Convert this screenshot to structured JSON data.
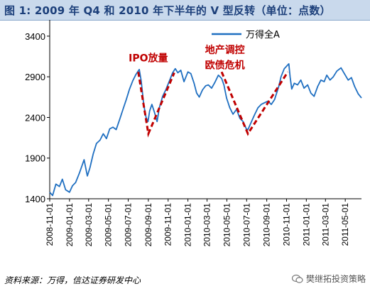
{
  "header": {
    "title": "图 1:  2009 年 Q4 和 2010 年下半年的 V 型反转（单位：点数）"
  },
  "footer": {
    "source": "资料来源：万得，信达证券研发中心",
    "watermark": "樊继拓投资策略"
  },
  "colors": {
    "line": "#1f6fc1",
    "annotation": "#c00000",
    "axis": "#000000",
    "title_bg": "#c9d9ec",
    "title_text": "#1c3f7a"
  },
  "chart_data": {
    "type": "line",
    "title": "",
    "xlabel": "",
    "ylabel": "",
    "ylim": [
      1400,
      3600
    ],
    "yticks": [
      1400,
      1900,
      2400,
      2900,
      3400
    ],
    "xlim": [
      "2008-11-01",
      "2011-06-20"
    ],
    "xticks": [
      "2008-11-01",
      "2009-01-01",
      "2009-03-01",
      "2009-05-01",
      "2009-07-01",
      "2009-09-01",
      "2009-11-01",
      "2010-01-01",
      "2010-03-01",
      "2010-05-01",
      "2010-07-01",
      "2010-09-01",
      "2010-11-01",
      "2011-01-01",
      "2011-03-01",
      "2011-05-01"
    ],
    "legend": {
      "position": "top-center"
    },
    "grid": false,
    "series": [
      {
        "name": "万得全A",
        "points": [
          [
            "2008-11-01",
            1480
          ],
          [
            "2008-11-10",
            1440
          ],
          [
            "2008-11-20",
            1580
          ],
          [
            "2008-12-01",
            1550
          ],
          [
            "2008-12-10",
            1640
          ],
          [
            "2008-12-20",
            1510
          ],
          [
            "2009-01-01",
            1480
          ],
          [
            "2009-01-10",
            1560
          ],
          [
            "2009-01-20",
            1600
          ],
          [
            "2009-02-01",
            1720
          ],
          [
            "2009-02-15",
            1880
          ],
          [
            "2009-02-25",
            1680
          ],
          [
            "2009-03-05",
            1780
          ],
          [
            "2009-03-15",
            1950
          ],
          [
            "2009-03-25",
            2080
          ],
          [
            "2009-04-05",
            2120
          ],
          [
            "2009-04-15",
            2200
          ],
          [
            "2009-04-25",
            2140
          ],
          [
            "2009-05-05",
            2260
          ],
          [
            "2009-05-15",
            2280
          ],
          [
            "2009-05-25",
            2250
          ],
          [
            "2009-06-05",
            2380
          ],
          [
            "2009-06-15",
            2500
          ],
          [
            "2009-06-25",
            2620
          ],
          [
            "2009-07-05",
            2750
          ],
          [
            "2009-07-15",
            2850
          ],
          [
            "2009-07-25",
            2930
          ],
          [
            "2009-08-04",
            2990
          ],
          [
            "2009-08-10",
            2850
          ],
          [
            "2009-08-18",
            2550
          ],
          [
            "2009-08-25",
            2400
          ],
          [
            "2009-08-31",
            2350
          ],
          [
            "2009-09-05",
            2480
          ],
          [
            "2009-09-12",
            2560
          ],
          [
            "2009-09-20",
            2460
          ],
          [
            "2009-09-28",
            2350
          ],
          [
            "2009-10-05",
            2520
          ],
          [
            "2009-10-15",
            2660
          ],
          [
            "2009-10-25",
            2740
          ],
          [
            "2009-11-05",
            2850
          ],
          [
            "2009-11-15",
            2950
          ],
          [
            "2009-11-23",
            3000
          ],
          [
            "2009-12-01",
            2950
          ],
          [
            "2009-12-10",
            2980
          ],
          [
            "2009-12-20",
            2840
          ],
          [
            "2010-01-01",
            2960
          ],
          [
            "2010-01-10",
            2940
          ],
          [
            "2010-01-20",
            2820
          ],
          [
            "2010-01-28",
            2700
          ],
          [
            "2010-02-05",
            2650
          ],
          [
            "2010-02-15",
            2740
          ],
          [
            "2010-02-25",
            2790
          ],
          [
            "2010-03-05",
            2800
          ],
          [
            "2010-03-15",
            2760
          ],
          [
            "2010-03-25",
            2830
          ],
          [
            "2010-04-05",
            2920
          ],
          [
            "2010-04-15",
            2880
          ],
          [
            "2010-04-22",
            2800
          ],
          [
            "2010-04-30",
            2640
          ],
          [
            "2010-05-10",
            2520
          ],
          [
            "2010-05-20",
            2440
          ],
          [
            "2010-05-31",
            2500
          ],
          [
            "2010-06-10",
            2390
          ],
          [
            "2010-06-20",
            2350
          ],
          [
            "2010-06-30",
            2260
          ],
          [
            "2010-07-05",
            2250
          ],
          [
            "2010-07-15",
            2340
          ],
          [
            "2010-07-25",
            2430
          ],
          [
            "2010-08-05",
            2520
          ],
          [
            "2010-08-15",
            2560
          ],
          [
            "2010-08-25",
            2580
          ],
          [
            "2010-09-05",
            2600
          ],
          [
            "2010-09-15",
            2560
          ],
          [
            "2010-09-25",
            2620
          ],
          [
            "2010-10-08",
            2780
          ],
          [
            "2010-10-15",
            2900
          ],
          [
            "2010-10-25",
            3000
          ],
          [
            "2010-11-08",
            3060
          ],
          [
            "2010-11-12",
            2900
          ],
          [
            "2010-11-17",
            2750
          ],
          [
            "2010-11-25",
            2820
          ],
          [
            "2010-12-05",
            2800
          ],
          [
            "2010-12-15",
            2860
          ],
          [
            "2010-12-25",
            2760
          ],
          [
            "2011-01-05",
            2800
          ],
          [
            "2011-01-15",
            2700
          ],
          [
            "2011-01-25",
            2660
          ],
          [
            "2011-02-05",
            2780
          ],
          [
            "2011-02-15",
            2860
          ],
          [
            "2011-02-25",
            2840
          ],
          [
            "2011-03-05",
            2920
          ],
          [
            "2011-03-15",
            2860
          ],
          [
            "2011-03-25",
            2900
          ],
          [
            "2011-04-05",
            2970
          ],
          [
            "2011-04-18",
            3010
          ],
          [
            "2011-04-28",
            2940
          ],
          [
            "2011-05-10",
            2860
          ],
          [
            "2011-05-20",
            2890
          ],
          [
            "2011-05-30",
            2780
          ],
          [
            "2011-06-10",
            2690
          ],
          [
            "2011-06-20",
            2640
          ]
        ]
      }
    ],
    "annotations": [
      {
        "text": "IPO放量",
        "at": [
          "2009-09-01",
          3090
        ]
      },
      {
        "text": "地产调控",
        "at": [
          "2010-04-25",
          3190
        ]
      },
      {
        "text": "欧债危机",
        "at": [
          "2010-04-25",
          3000
        ]
      }
    ],
    "v_lines": [
      [
        [
          "2009-08-01",
          2960
        ],
        [
          "2009-09-01",
          2200
        ],
        [
          "2009-11-20",
          2950
        ]
      ],
      [
        [
          "2010-04-15",
          2960
        ],
        [
          "2010-07-05",
          2200
        ],
        [
          "2010-11-05",
          2960
        ]
      ]
    ]
  }
}
